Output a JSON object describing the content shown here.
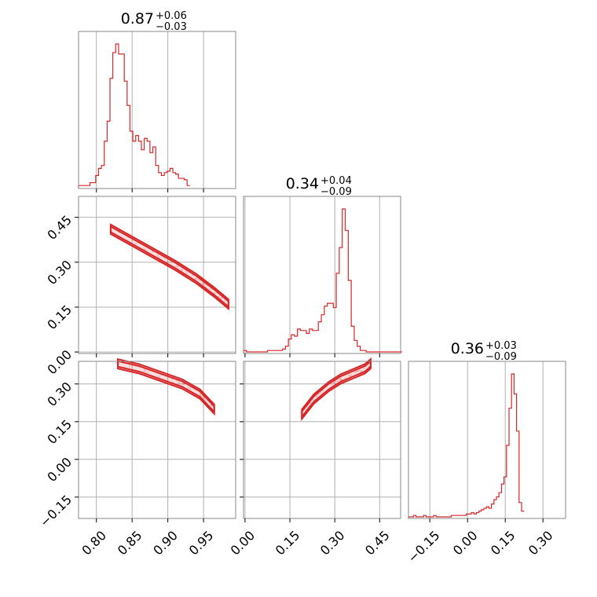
{
  "chart_data": {
    "type": "corner",
    "color": "#d62728",
    "params": [
      {
        "median": "0.87",
        "upper": "+0.06",
        "lower": "−0.03",
        "range": [
          0.775,
          0.995
        ],
        "ticks": [
          0.8,
          0.85,
          0.9,
          0.95
        ],
        "tick_labels": [
          "0.80",
          "0.85",
          "0.90",
          "0.95"
        ]
      },
      {
        "median": "0.34",
        "upper": "+0.04",
        "lower": "−0.09",
        "range": [
          -0.005,
          0.52
        ],
        "ticks": [
          0.0,
          0.15,
          0.3,
          0.45
        ],
        "tick_labels": [
          "0.00",
          "0.15",
          "0.30",
          "0.45"
        ]
      },
      {
        "median": "0.36",
        "upper": "+0.03",
        "lower": "−0.09",
        "range": [
          -0.235,
          0.39
        ],
        "ticks": [
          -0.15,
          0.0,
          0.15,
          0.3
        ],
        "tick_labels": [
          "−0.15",
          "0.00",
          "0.15",
          "0.30"
        ]
      }
    ],
    "histograms": [
      {
        "x0": 0.775,
        "dx": 0.004,
        "counts": [
          1,
          1,
          1,
          1,
          3,
          3,
          8,
          13,
          15,
          32,
          46,
          76,
          94,
          100,
          93,
          93,
          74,
          57,
          39,
          32,
          36,
          32,
          26,
          34,
          32,
          24,
          28,
          15,
          10,
          8,
          10,
          11,
          13,
          10,
          9,
          6,
          6,
          5,
          1
        ]
      },
      {
        "x0": -0.005,
        "dx": 0.01,
        "counts": [
          1,
          0,
          0,
          0,
          0,
          0,
          0,
          0,
          1,
          1,
          1,
          1,
          1,
          2,
          4,
          9,
          12,
          11,
          16,
          15,
          15,
          13,
          16,
          15,
          15,
          21,
          26,
          32,
          34,
          34,
          31,
          55,
          73,
          100,
          85,
          50,
          18,
          8,
          4,
          1,
          1,
          0,
          0,
          0,
          0,
          0,
          0,
          0,
          0,
          0,
          0,
          0,
          0
        ]
      },
      {
        "x0": -0.235,
        "dx": 0.01,
        "counts": [
          0,
          0,
          1,
          0,
          0,
          0,
          1,
          0,
          0,
          0,
          1,
          0,
          0,
          0,
          0,
          0,
          0,
          1,
          1,
          1,
          1,
          1,
          1,
          2,
          2,
          3,
          2,
          3,
          4,
          5,
          6,
          7,
          6,
          9,
          12,
          14,
          17,
          23,
          28,
          50,
          76,
          100,
          86,
          60,
          10,
          4
        ]
      }
    ],
    "contours": [
      {
        "x": 0,
        "y": 1,
        "ridge": [
          [
            0.82,
            0.41
          ],
          [
            0.85,
            0.37
          ],
          [
            0.88,
            0.33
          ],
          [
            0.91,
            0.29
          ],
          [
            0.94,
            0.245
          ],
          [
            0.965,
            0.2
          ],
          [
            0.985,
            0.16
          ]
        ]
      },
      {
        "x": 0,
        "y": 2,
        "ridge": [
          [
            0.83,
            0.38
          ],
          [
            0.86,
            0.36
          ],
          [
            0.89,
            0.33
          ],
          [
            0.92,
            0.3
          ],
          [
            0.945,
            0.26
          ],
          [
            0.965,
            0.2
          ]
        ]
      },
      {
        "x": 1,
        "y": 2,
        "ridge": [
          [
            0.19,
            0.18
          ],
          [
            0.23,
            0.24
          ],
          [
            0.28,
            0.29
          ],
          [
            0.32,
            0.32
          ],
          [
            0.36,
            0.34
          ],
          [
            0.4,
            0.36
          ],
          [
            0.42,
            0.38
          ]
        ]
      }
    ],
    "grid": true
  }
}
